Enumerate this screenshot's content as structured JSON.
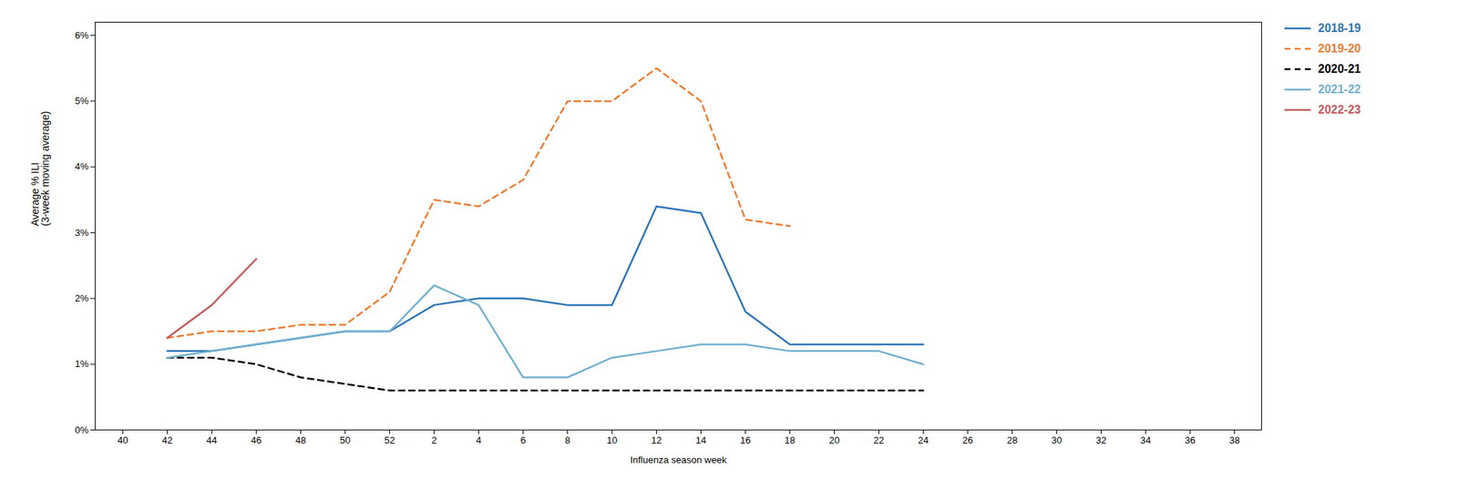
{
  "chart_data": {
    "type": "line",
    "xlabel": "Influenza season week",
    "ylabel": "Average % ILI\n(3-week moving average)",
    "categories": [
      "40",
      "42",
      "44",
      "46",
      "48",
      "50",
      "52",
      "2",
      "4",
      "6",
      "8",
      "10",
      "12",
      "14",
      "16",
      "18",
      "20",
      "22",
      "24",
      "26",
      "28",
      "30",
      "32",
      "34",
      "36",
      "38"
    ],
    "series": [
      {
        "name": "2018-19",
        "color": "#2e75b6",
        "line_style": "solid",
        "values": [
          null,
          0.012,
          0.012,
          0.013,
          0.014,
          0.015,
          0.015,
          0.019,
          0.02,
          0.02,
          0.019,
          0.019,
          0.034,
          0.033,
          0.018,
          0.013,
          0.013,
          0.013,
          0.013,
          null,
          null,
          null,
          null,
          null,
          null,
          null
        ]
      },
      {
        "name": "2019-20",
        "color": "#ed7d31",
        "line_style": "dashed",
        "values": [
          null,
          0.014,
          0.015,
          0.015,
          0.016,
          0.016,
          0.021,
          0.035,
          0.034,
          0.038,
          0.05,
          0.05,
          0.055,
          0.05,
          0.032,
          0.031,
          null,
          null,
          null,
          null,
          null,
          null,
          null,
          null,
          null,
          null
        ]
      },
      {
        "name": "2020-21",
        "color": "#000000",
        "line_style": "dashed",
        "values": [
          null,
          0.011,
          0.011,
          0.01,
          0.008,
          0.007,
          0.006,
          0.006,
          0.006,
          0.006,
          0.006,
          0.006,
          0.006,
          0.006,
          0.006,
          0.006,
          0.006,
          0.006,
          0.006,
          null,
          null,
          null,
          null,
          null,
          null,
          null
        ]
      },
      {
        "name": "2021-22",
        "color": "#70b0d0",
        "line_style": "solid",
        "values": [
          null,
          0.011,
          0.012,
          0.013,
          0.014,
          0.015,
          0.015,
          0.022,
          0.019,
          0.008,
          0.008,
          0.011,
          0.012,
          0.013,
          0.013,
          0.012,
          0.012,
          0.012,
          0.01,
          null,
          null,
          null,
          null,
          null,
          null,
          null
        ]
      },
      {
        "name": "2022-23",
        "color": "#c55a5a",
        "line_style": "solid",
        "values": [
          null,
          0.014,
          0.019,
          0.026,
          null,
          null,
          null,
          null,
          null,
          null,
          null,
          null,
          null,
          null,
          null,
          null,
          null,
          null,
          null,
          null,
          null,
          null,
          null,
          null,
          null,
          null
        ]
      }
    ],
    "ylim": [
      0,
      0.062
    ],
    "yticks": [
      {
        "value": 0.0,
        "label": "0%"
      },
      {
        "value": 0.01,
        "label": "1%"
      },
      {
        "value": 0.02,
        "label": "2%"
      },
      {
        "value": 0.03,
        "label": "3%"
      },
      {
        "value": 0.04,
        "label": "4%"
      },
      {
        "value": 0.05,
        "label": "5%"
      },
      {
        "value": 0.06,
        "label": "6%"
      }
    ],
    "grid": false,
    "legend": "upper right"
  }
}
